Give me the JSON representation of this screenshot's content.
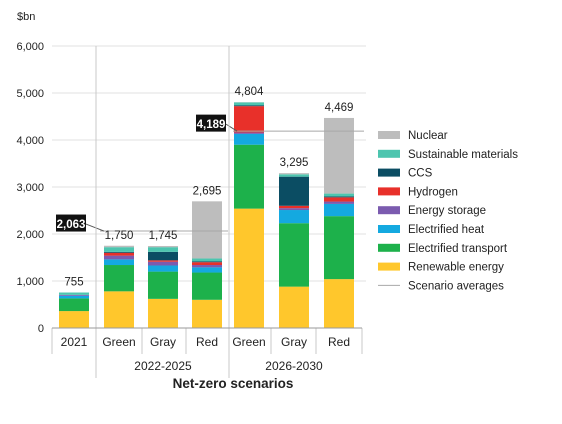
{
  "chart_data": {
    "type": "bar",
    "stacked": true,
    "unit_label": "$bn",
    "xlabel": "Net-zero scenarios",
    "ylim": [
      0,
      6000
    ],
    "yticks": [
      "0",
      "1,000",
      "2,000",
      "3,000",
      "4,000",
      "5,000",
      "6,000"
    ],
    "ytick_values": [
      0,
      1000,
      2000,
      3000,
      4000,
      5000,
      6000
    ],
    "grid": true,
    "legend_position": "right",
    "groups": [
      {
        "label": "",
        "categories": [
          0
        ]
      },
      {
        "label": "2022-2025",
        "categories": [
          1,
          2,
          3
        ]
      },
      {
        "label": "2026-2030",
        "categories": [
          4,
          5,
          6
        ]
      }
    ],
    "categories": [
      "2021",
      "Green",
      "Gray",
      "Red",
      "Green",
      "Gray",
      "Red"
    ],
    "totals": [
      "755",
      "1,750",
      "1,745",
      "2,695",
      "4,804",
      "3,295",
      "4,469"
    ],
    "total_values": [
      755,
      1750,
      1745,
      2695,
      4804,
      3295,
      4469
    ],
    "series": [
      {
        "name": "Renewable energy",
        "color": "#FFC72C",
        "values": [
          360,
          780,
          620,
          600,
          2540,
          880,
          1040
        ]
      },
      {
        "name": "Electrified transport",
        "color": "#1DB14B",
        "values": [
          270,
          560,
          580,
          580,
          1360,
          1350,
          1340
        ]
      },
      {
        "name": "Electrified heat",
        "color": "#14A9E0",
        "values": [
          55,
          120,
          130,
          110,
          230,
          280,
          260
        ]
      },
      {
        "name": "Energy storage",
        "color": "#7B5BAF",
        "values": [
          20,
          80,
          80,
          50,
          30,
          40,
          50
        ]
      },
      {
        "name": "Hydrogen",
        "color": "#E8302A",
        "values": [
          0,
          60,
          30,
          60,
          560,
          50,
          90
        ]
      },
      {
        "name": "CCS",
        "color": "#0B4D63",
        "values": [
          0,
          20,
          180,
          20,
          20,
          620,
          20
        ]
      },
      {
        "name": "Sustainable materials",
        "color": "#4DC5AF",
        "values": [
          50,
          100,
          100,
          60,
          60,
          50,
          60
        ]
      },
      {
        "name": "Nuclear",
        "color": "#BDBDBD",
        "values": [
          0,
          30,
          25,
          1215,
          4,
          25,
          1609
        ]
      }
    ],
    "scenario_averages": {
      "name": "Scenario averages",
      "values": [
        2063,
        4189
      ],
      "labels": [
        "2,063",
        "4,189"
      ],
      "groups": [
        1,
        2
      ]
    }
  }
}
